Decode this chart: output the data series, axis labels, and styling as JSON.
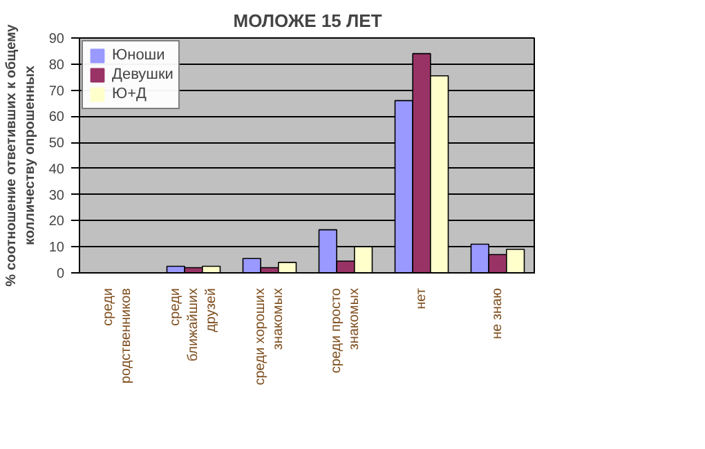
{
  "chart_data": {
    "type": "bar",
    "title": "МОЛОЖЕ 15 ЛЕТ",
    "ylabel": "% соотношение ответивших к общему колличеству опрошенных",
    "categories": [
      "среди родственников",
      "среди ближайших друзей",
      "среди хороших знакомых",
      "среди просто знакомых",
      "нет",
      "не знаю"
    ],
    "series": [
      {
        "name": "Юноши",
        "color": "#9999ff",
        "values": [
          0,
          2.5,
          5.5,
          16.5,
          66,
          11
        ]
      },
      {
        "name": "Девушки",
        "color": "#993366",
        "values": [
          0,
          2,
          2,
          4.5,
          84,
          7
        ]
      },
      {
        "name": "Ю+Д",
        "color": "#ffffcc",
        "values": [
          0,
          2.5,
          4,
          10,
          75.5,
          9
        ]
      }
    ],
    "ylim": [
      0,
      90
    ],
    "yticks": [
      0,
      10,
      20,
      30,
      40,
      50,
      60,
      70,
      80,
      90
    ],
    "grid": "y",
    "legend": "top left"
  }
}
